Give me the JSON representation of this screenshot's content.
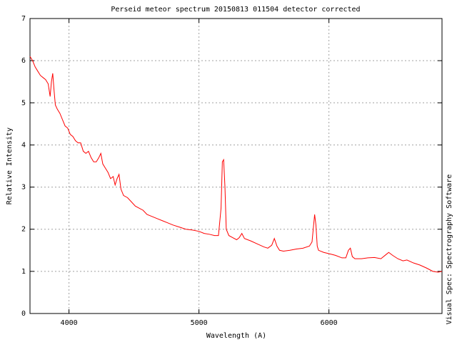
{
  "chart_data": {
    "type": "line",
    "title": "Perseid meteor spectrum 20150813 011504 detector corrected",
    "x_label": "Wavelength (A)",
    "y_label": "Relative Intensity",
    "annotation": "Visual Spec: Spectrography Software",
    "xlim": [
      3700,
      6870
    ],
    "xticks": [
      4000,
      5000,
      6000
    ],
    "ylim": [
      0,
      7
    ],
    "yticks": [
      0,
      1,
      2,
      3,
      4,
      5,
      6,
      7
    ],
    "grid": true,
    "x": [
      3700,
      3720,
      3740,
      3760,
      3780,
      3800,
      3820,
      3840,
      3855,
      3865,
      3875,
      3885,
      3895,
      3910,
      3930,
      3950,
      3970,
      3990,
      4010,
      4030,
      4050,
      4070,
      4090,
      4110,
      4130,
      4150,
      4170,
      4190,
      4210,
      4230,
      4245,
      4260,
      4280,
      4300,
      4320,
      4340,
      4355,
      4370,
      4385,
      4400,
      4420,
      4450,
      4480,
      4510,
      4540,
      4570,
      4600,
      4640,
      4680,
      4720,
      4760,
      4800,
      4850,
      4900,
      4950,
      5000,
      5040,
      5080,
      5120,
      5150,
      5170,
      5180,
      5190,
      5200,
      5210,
      5230,
      5260,
      5290,
      5310,
      5330,
      5350,
      5400,
      5450,
      5500,
      5530,
      5560,
      5580,
      5600,
      5620,
      5650,
      5700,
      5750,
      5800,
      5850,
      5870,
      5890,
      5900,
      5910,
      5920,
      5960,
      6000,
      6050,
      6100,
      6130,
      6150,
      6165,
      6180,
      6200,
      6250,
      6300,
      6350,
      6400,
      6440,
      6460,
      6490,
      6530,
      6570,
      6600,
      6650,
      6700,
      6750,
      6800,
      6840,
      6870
    ],
    "series": [
      {
        "name": "spectrum",
        "color": "#ff0000",
        "values": [
          6.1,
          6.0,
          5.85,
          5.75,
          5.65,
          5.6,
          5.55,
          5.45,
          5.15,
          5.5,
          5.7,
          5.3,
          4.95,
          4.85,
          4.75,
          4.6,
          4.45,
          4.4,
          4.25,
          4.2,
          4.1,
          4.05,
          4.05,
          3.85,
          3.8,
          3.85,
          3.7,
          3.6,
          3.6,
          3.7,
          3.8,
          3.55,
          3.45,
          3.35,
          3.2,
          3.25,
          3.05,
          3.2,
          3.3,
          2.95,
          2.8,
          2.75,
          2.65,
          2.55,
          2.5,
          2.45,
          2.35,
          2.3,
          2.25,
          2.2,
          2.15,
          2.1,
          2.05,
          2.0,
          1.98,
          1.95,
          1.9,
          1.88,
          1.85,
          1.85,
          2.5,
          3.6,
          3.65,
          3.0,
          2.0,
          1.85,
          1.8,
          1.75,
          1.8,
          1.9,
          1.78,
          1.72,
          1.65,
          1.58,
          1.55,
          1.62,
          1.78,
          1.6,
          1.5,
          1.48,
          1.5,
          1.53,
          1.55,
          1.6,
          1.7,
          2.35,
          2.1,
          1.6,
          1.5,
          1.45,
          1.42,
          1.38,
          1.32,
          1.32,
          1.5,
          1.55,
          1.35,
          1.3,
          1.3,
          1.32,
          1.33,
          1.3,
          1.4,
          1.45,
          1.38,
          1.3,
          1.25,
          1.27,
          1.2,
          1.15,
          1.08,
          1.0,
          0.98,
          1.0
        ]
      }
    ]
  }
}
